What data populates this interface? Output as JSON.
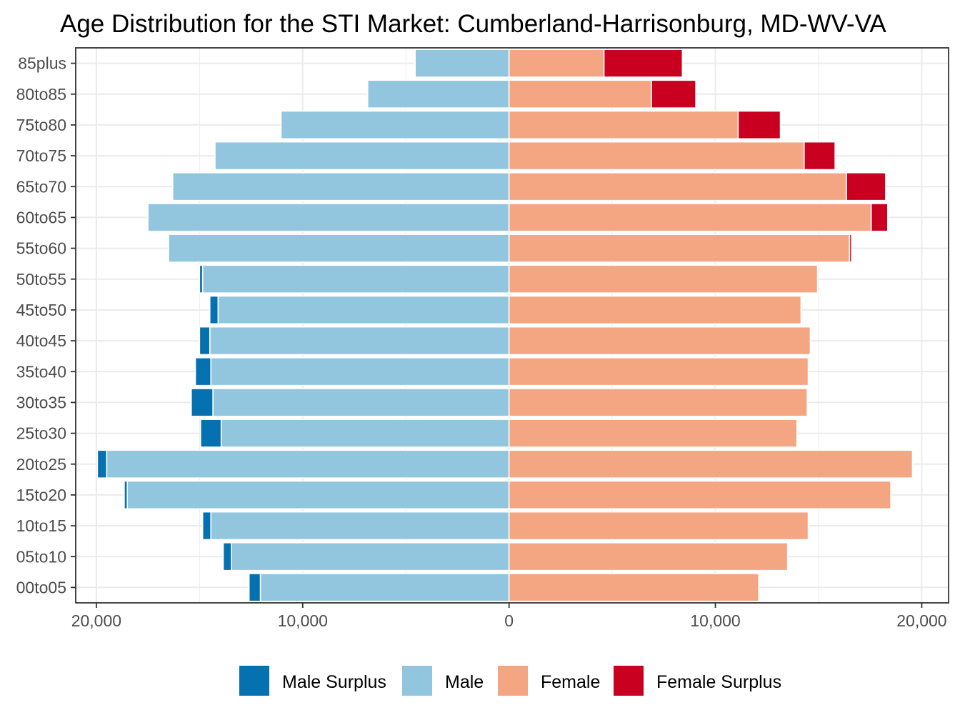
{
  "chart_data": {
    "type": "bar",
    "orientation": "horizontal",
    "layout": "population-pyramid",
    "title": "Age Distribution for the STI Market: Cumberland-Harrisonburg, MD-WV-VA",
    "categories": [
      "00to05",
      "05to10",
      "10to15",
      "15to20",
      "20to25",
      "25to30",
      "30to35",
      "35to40",
      "40to45",
      "45to50",
      "50to55",
      "55to60",
      "60to65",
      "65to70",
      "70to75",
      "75to80",
      "80to85",
      "85plus"
    ],
    "x_tick_labels": [
      "20,000",
      "10,000",
      "0",
      "10,000",
      "20,000"
    ],
    "x_tick_values": [
      -20000,
      -10000,
      0,
      10000,
      20000
    ],
    "xlim": [
      -21000,
      21300
    ],
    "grid": true,
    "legend_position": "bottom",
    "series": [
      {
        "name": "Male",
        "side": "left",
        "values": [
          12050,
          13450,
          14450,
          18500,
          19500,
          13950,
          14350,
          14450,
          14500,
          14100,
          14850,
          16500,
          17500,
          16300,
          14250,
          11050,
          6850,
          4550
        ]
      },
      {
        "name": "Male Surplus",
        "side": "left",
        "stacked_on": "Male",
        "values": [
          550,
          400,
          400,
          150,
          450,
          1000,
          1050,
          750,
          500,
          400,
          150,
          0,
          0,
          0,
          0,
          0,
          0,
          0
        ]
      },
      {
        "name": "Female",
        "side": "right",
        "values": [
          12100,
          13500,
          14500,
          18500,
          19550,
          13950,
          14450,
          14500,
          14600,
          14150,
          14950,
          16500,
          17550,
          16350,
          14300,
          11100,
          6900,
          4600
        ]
      },
      {
        "name": "Female Surplus",
        "side": "right",
        "stacked_on": "Female",
        "values": [
          0,
          0,
          0,
          0,
          0,
          0,
          0,
          0,
          0,
          0,
          0,
          100,
          800,
          1900,
          1500,
          2050,
          2150,
          3800
        ]
      }
    ],
    "colors": {
      "Male Surplus": "#0571b0",
      "Male": "#92c5de",
      "Female": "#f4a582",
      "Female Surplus": "#ca0020"
    },
    "legend": [
      {
        "label": "Male Surplus",
        "color": "#0571b0"
      },
      {
        "label": "Male",
        "color": "#92c5de"
      },
      {
        "label": "Female",
        "color": "#f4a582"
      },
      {
        "label": "Female Surplus",
        "color": "#ca0020"
      }
    ]
  }
}
